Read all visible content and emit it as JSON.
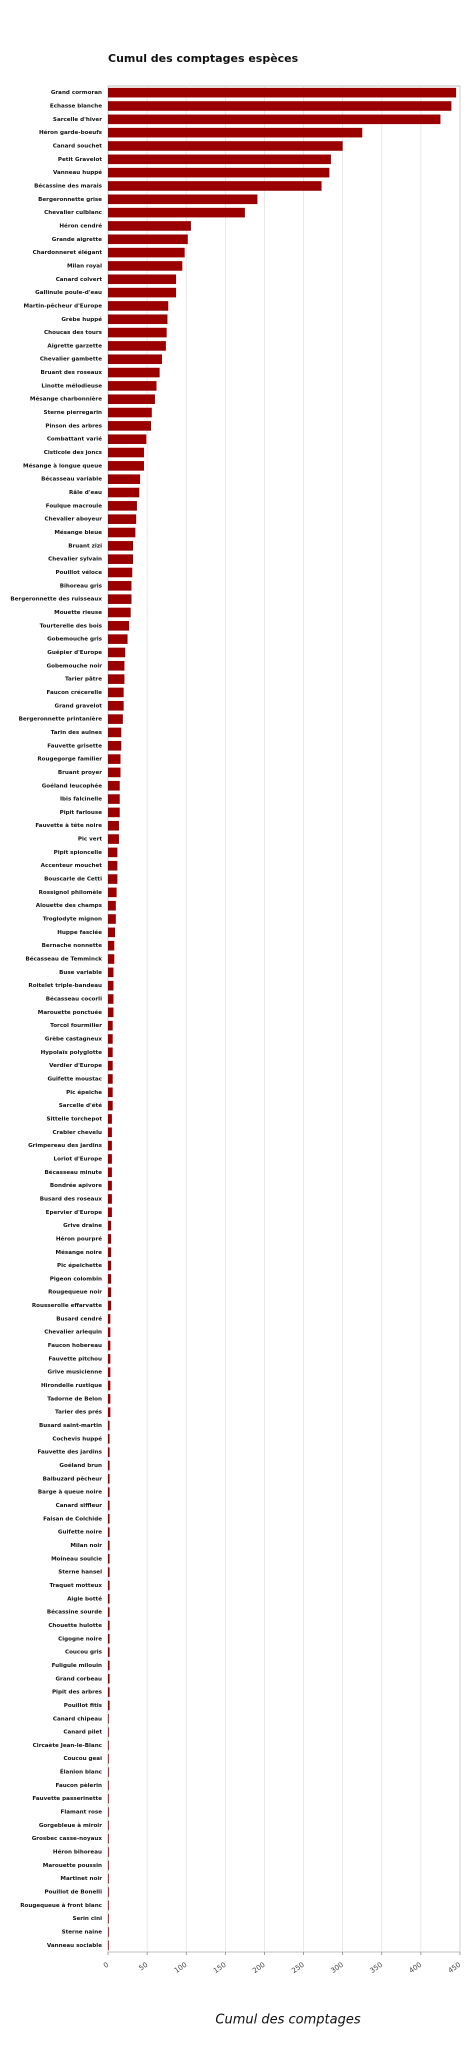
{
  "chart_data": {
    "type": "barh",
    "title": "Cumul des comptages espèces",
    "xlabel": "Cumul des comptages",
    "color": "#9b0000",
    "grid": true,
    "xlim": [
      0,
      450
    ],
    "xticks": [
      0,
      50,
      100,
      150,
      200,
      250,
      300,
      350,
      400,
      450
    ],
    "categories": [
      "Grand cormoran",
      "Echasse blanche",
      "Sarcelle d'hiver",
      "Héron garde-boeufs",
      "Canard souchet",
      "Petit Gravelot",
      "Vanneau huppé",
      "Bécassine des marais",
      "Bergeronnette grise",
      "Chevalier culblanc",
      "Héron cendré",
      "Grande aigrette",
      "Chardonneret élégant",
      "Milan royal",
      "Canard colvert",
      "Gallinule poule-d'eau",
      "Martin-pêcheur d'Europe",
      "Grèbe huppé",
      "Choucas des tours",
      "Aigrette garzette",
      "Chevalier gambette",
      "Bruant des roseaux",
      "Linotte mélodieuse",
      "Mésange charbonnière",
      "Sterne pierregarin",
      "Pinson des arbres",
      "Combattant varié",
      "Cisticole des joncs",
      "Mésange à longue queue",
      "Bécasseau variable",
      "Râle d'eau",
      "Foulque macroule",
      "Chevalier aboyeur",
      "Mésange bleue",
      "Bruant zizi",
      "Chevalier sylvain",
      "Pouillot véloce",
      "Bihoreau gris",
      "Bergeronnette des ruisseaux",
      "Mouette rieuse",
      "Tourterelle des bois",
      "Gobemouche gris",
      "Guêpier d'Europe",
      "Gobemouche noir",
      "Tarier pâtre",
      "Faucon crécerelle",
      "Grand gravelot",
      "Bergeronnette printanière",
      "Tarin des aulnes",
      "Fauvette grisette",
      "Rougegorge familier",
      "Bruant proyer",
      "Goéland leucophée",
      "Ibis falcinelle",
      "Pipit farlouse",
      "Fauvette à tête noire",
      "Pic vert",
      "Pipit spioncelle",
      "Accenteur mouchet",
      "Bouscarle de Cetti",
      "Rossignol philomèle",
      "Alouette des champs",
      "Troglodyte mignon",
      "Huppe fasciée",
      "Bernache nonnette",
      "Bécasseau de Temminck",
      "Buse variable",
      "Roitelet triple-bandeau",
      "Bécasseau cocorli",
      "Marouette ponctuée",
      "Torcol fourmilier",
      "Grèbe castagneux",
      "Hypolaïs polyglotte",
      "Verdier d'Europe",
      "Guifette moustac",
      "Pic épeiche",
      "Sarcelle d'été",
      "Sittelle torchepot",
      "Crabier chevelu",
      "Grimpereau des jardins",
      "Loriot d'Europe",
      "Bécasseau minute",
      "Bondrée apivore",
      "Busard des roseaux",
      "Epervier d'Europe",
      "Grive draine",
      "Héron pourpré",
      "Mésange noire",
      "Pic épeichette",
      "Pigeon colombin",
      "Rougequeue noir",
      "Rousserolle effarvatte",
      "Busard cendré",
      "Chevalier arlequin",
      "Faucon hobereau",
      "Fauvette pitchou",
      "Grive musicienne",
      "Hirondelle rustique",
      "Tadorne de Belon",
      "Tarier des prés",
      "Busard saint-martin",
      "Cochevis huppé",
      "Fauvette des jardins",
      "Goéland brun",
      "Balbuzard pêcheur",
      "Barge à queue noire",
      "Canard siffleur",
      "Faisan de Colchide",
      "Guifette noire",
      "Milan noir",
      "Moineau soulcie",
      "Sterne hansel",
      "Traquet motteux",
      "Aigle botté",
      "Bécassine sourde",
      "Chouette hulotte",
      "Cigogne noire",
      "Coucou gris",
      "Fuligule milouin",
      "Grand corbeau",
      "Pipit des arbres",
      "Pouillot fitis",
      "Canard chipeau",
      "Canard pilet",
      "Circaète Jean-le-Blanc",
      "Coucou geai",
      "Élanion blanc",
      "Faucon pèlerin",
      "Fauvette passerinette",
      "Flamant rose",
      "Gorgebleue à miroir",
      "Grosbec casse-noyaux",
      "Héron bihoreau",
      "Marouette poussin",
      "Martinet noir",
      "Pouillot de Bonelli",
      "Rougequeue à front blanc",
      "Serin cini",
      "Sterne naine",
      "Vanneau sociable"
    ],
    "values": [
      445,
      439,
      425,
      325,
      300,
      285,
      283,
      273,
      191,
      175,
      106,
      102,
      98,
      95,
      87,
      87,
      77,
      76,
      75,
      74,
      69,
      66,
      62,
      60,
      56,
      55,
      49,
      46,
      46,
      41,
      40,
      37,
      36,
      35,
      32,
      32,
      31,
      30,
      30,
      29,
      27,
      25,
      22,
      21,
      21,
      20,
      20,
      19,
      17,
      17,
      16,
      16,
      15,
      15,
      15,
      14,
      14,
      12,
      12,
      12,
      11,
      10,
      10,
      9,
      8,
      8,
      7,
      7,
      7,
      7,
      6,
      6,
      6,
      6,
      6,
      6,
      6,
      5,
      5,
      5,
      5,
      5,
      5,
      5,
      5,
      4,
      4,
      4,
      4,
      4,
      4,
      4,
      3,
      3,
      3,
      3,
      3,
      3,
      3,
      3,
      2,
      2,
      2,
      2,
      2,
      2,
      2,
      2,
      2,
      2,
      2,
      2,
      2,
      2,
      2,
      2,
      2,
      2,
      2,
      2,
      2,
      2,
      1,
      1,
      1,
      1,
      1,
      1,
      1,
      1,
      1,
      1,
      1,
      1,
      1,
      1,
      1,
      1,
      1,
      1
    ]
  }
}
